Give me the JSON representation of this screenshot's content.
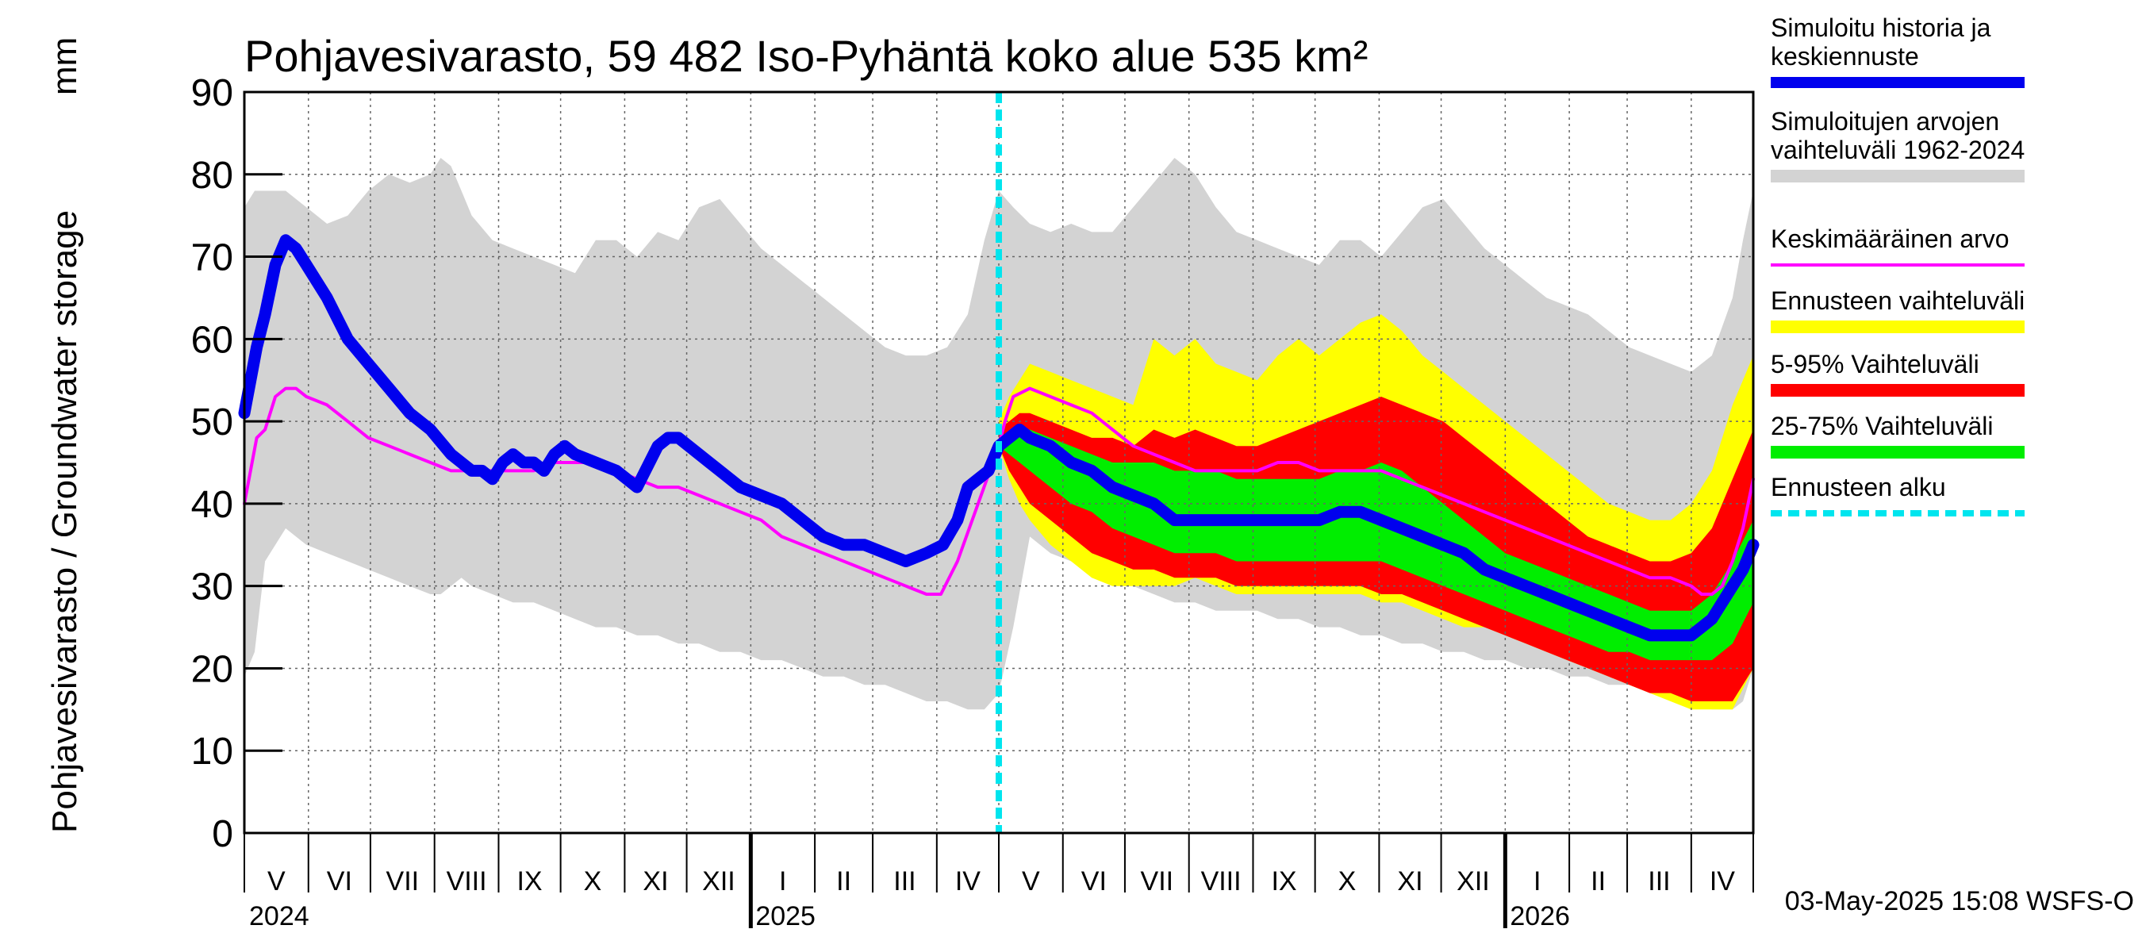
{
  "chart_data": {
    "type": "area",
    "title": "Pohjavesivarasto, 59 482 Iso-Pyhäntä koko alue 535 km²",
    "ylabel": "Pohjavesivarasto / Groundwater storage",
    "yunit": "mm",
    "ylim": [
      0,
      90
    ],
    "yticks": [
      "0",
      "10",
      "20",
      "30",
      "40",
      "50",
      "60",
      "70",
      "80",
      "90"
    ],
    "xlim_days": [
      0,
      730
    ],
    "forecast_start_day": 365,
    "grid": true,
    "months": [
      {
        "label": "V",
        "start": 0
      },
      {
        "label": "VI",
        "start": 31
      },
      {
        "label": "VII",
        "start": 61
      },
      {
        "label": "VIII",
        "start": 92
      },
      {
        "label": "IX",
        "start": 123
      },
      {
        "label": "X",
        "start": 153
      },
      {
        "label": "XI",
        "start": 184
      },
      {
        "label": "XII",
        "start": 214
      },
      {
        "label": "I",
        "start": 245
      },
      {
        "label": "II",
        "start": 276
      },
      {
        "label": "III",
        "start": 304
      },
      {
        "label": "IV",
        "start": 335
      },
      {
        "label": "V",
        "start": 365
      },
      {
        "label": "VI",
        "start": 396
      },
      {
        "label": "VII",
        "start": 426
      },
      {
        "label": "VIII",
        "start": 457
      },
      {
        "label": "IX",
        "start": 488
      },
      {
        "label": "X",
        "start": 518
      },
      {
        "label": "XI",
        "start": 549
      },
      {
        "label": "XII",
        "start": 579
      },
      {
        "label": "I",
        "start": 610
      },
      {
        "label": "II",
        "start": 641
      },
      {
        "label": "III",
        "start": 669
      },
      {
        "label": "IV",
        "start": 700
      }
    ],
    "years": [
      {
        "label": "2024",
        "day": 0
      },
      {
        "label": "2025",
        "day": 245
      },
      {
        "label": "2026",
        "day": 610
      }
    ],
    "series": [
      {
        "name": "Simuloitujen arvojen vaihteluväli 1962-2024",
        "color": "#d3d3d3",
        "x": [
          0,
          5,
          10,
          20,
          30,
          40,
          50,
          60,
          70,
          80,
          90,
          95,
          100,
          105,
          110,
          120,
          130,
          140,
          150,
          160,
          170,
          180,
          190,
          200,
          210,
          220,
          230,
          240,
          250,
          260,
          270,
          280,
          290,
          300,
          310,
          320,
          330,
          340,
          350,
          358,
          365,
          372,
          380,
          390,
          400,
          410,
          420,
          430,
          440,
          450,
          460,
          470,
          480,
          490,
          500,
          510,
          520,
          530,
          540,
          550,
          560,
          570,
          580,
          590,
          600,
          610,
          620,
          630,
          640,
          650,
          660,
          670,
          680,
          690,
          700,
          710,
          720,
          725,
          730
        ],
        "upper": [
          76,
          78,
          78,
          78,
          76,
          74,
          75,
          78,
          80,
          79,
          80,
          82,
          81,
          78,
          75,
          72,
          71,
          70,
          69,
          68,
          72,
          72,
          70,
          73,
          72,
          76,
          77,
          74,
          71,
          69,
          67,
          65,
          63,
          61,
          59,
          58,
          58,
          59,
          63,
          72,
          78,
          76,
          74,
          73,
          74,
          73,
          73,
          76,
          79,
          82,
          80,
          76,
          73,
          72,
          71,
          70,
          69,
          72,
          72,
          70,
          73,
          76,
          77,
          74,
          71,
          69,
          67,
          65,
          64,
          63,
          61,
          59,
          58,
          57,
          56,
          58,
          65,
          72,
          78
        ],
        "lower": [
          19,
          22,
          33,
          37,
          35,
          34,
          33,
          32,
          31,
          30,
          29,
          29,
          30,
          31,
          30,
          29,
          28,
          28,
          27,
          26,
          25,
          25,
          24,
          24,
          23,
          23,
          22,
          22,
          21,
          21,
          20,
          19,
          19,
          18,
          18,
          17,
          16,
          16,
          15,
          15,
          17,
          25,
          36,
          34,
          33,
          32,
          31,
          30,
          29,
          28,
          28,
          27,
          27,
          27,
          26,
          26,
          25,
          25,
          24,
          24,
          23,
          23,
          22,
          22,
          21,
          21,
          20,
          20,
          19,
          19,
          18,
          18,
          17,
          17,
          16,
          15,
          15,
          16,
          20
        ]
      },
      {
        "name": "Ennusteen vaihteluväli",
        "color": "#ffff00",
        "x": [
          365,
          370,
          375,
          380,
          390,
          400,
          410,
          420,
          430,
          440,
          450,
          460,
          470,
          480,
          490,
          500,
          510,
          520,
          530,
          540,
          550,
          560,
          570,
          580,
          590,
          600,
          610,
          620,
          630,
          640,
          650,
          660,
          670,
          680,
          690,
          700,
          710,
          720,
          730
        ],
        "upper": [
          50,
          53,
          55,
          57,
          56,
          55,
          54,
          53,
          52,
          60,
          58,
          60,
          57,
          56,
          55,
          58,
          60,
          58,
          60,
          62,
          63,
          61,
          58,
          56,
          54,
          52,
          50,
          48,
          46,
          44,
          42,
          40,
          39,
          38,
          38,
          40,
          44,
          52,
          58
        ],
        "lower": [
          47,
          43,
          40,
          38,
          35,
          33,
          31,
          30,
          30,
          30,
          30,
          31,
          30,
          29,
          29,
          29,
          29,
          29,
          29,
          29,
          28,
          28,
          27,
          26,
          25,
          25,
          24,
          23,
          22,
          21,
          20,
          19,
          18,
          17,
          16,
          15,
          15,
          15,
          20
        ]
      },
      {
        "name": "5-95% Vaihteluväli",
        "color": "#ff0000",
        "x": [
          365,
          370,
          375,
          380,
          390,
          400,
          410,
          420,
          430,
          440,
          450,
          460,
          470,
          480,
          490,
          500,
          510,
          520,
          530,
          540,
          550,
          560,
          570,
          580,
          590,
          600,
          610,
          620,
          630,
          640,
          650,
          660,
          670,
          680,
          690,
          700,
          710,
          720,
          730
        ],
        "upper": [
          49,
          50,
          51,
          51,
          50,
          49,
          48,
          48,
          47,
          49,
          48,
          49,
          48,
          47,
          47,
          48,
          49,
          50,
          51,
          52,
          53,
          52,
          51,
          50,
          48,
          46,
          44,
          42,
          40,
          38,
          36,
          35,
          34,
          33,
          33,
          34,
          37,
          43,
          49
        ],
        "lower": [
          47,
          44,
          42,
          40,
          38,
          36,
          34,
          33,
          32,
          32,
          31,
          31,
          31,
          30,
          30,
          30,
          30,
          30,
          30,
          30,
          29,
          29,
          28,
          27,
          26,
          25,
          24,
          23,
          22,
          21,
          20,
          19,
          18,
          17,
          17,
          16,
          16,
          16,
          20
        ]
      },
      {
        "name": "25-75% Vaihteluväli",
        "color": "#00ee00",
        "x": [
          365,
          370,
          375,
          380,
          390,
          400,
          410,
          420,
          430,
          440,
          450,
          460,
          470,
          480,
          490,
          500,
          510,
          520,
          530,
          540,
          550,
          560,
          570,
          580,
          590,
          600,
          610,
          620,
          630,
          640,
          650,
          660,
          670,
          680,
          690,
          700,
          710,
          720,
          730
        ],
        "upper": [
          48,
          48,
          49,
          49,
          48,
          47,
          46,
          45,
          45,
          45,
          44,
          44,
          44,
          43,
          43,
          43,
          43,
          43,
          44,
          44,
          45,
          44,
          42,
          40,
          38,
          36,
          34,
          33,
          32,
          31,
          30,
          29,
          28,
          27,
          27,
          27,
          29,
          33,
          38
        ],
        "lower": [
          47,
          46,
          45,
          44,
          42,
          40,
          39,
          37,
          36,
          35,
          34,
          34,
          34,
          33,
          33,
          33,
          33,
          33,
          33,
          33,
          33,
          32,
          31,
          30,
          29,
          28,
          27,
          26,
          25,
          24,
          23,
          22,
          22,
          21,
          21,
          21,
          21,
          23,
          28
        ]
      },
      {
        "name": "Keskimääräinen arvo",
        "color": "#ff00ff",
        "x": [
          0,
          3,
          6,
          10,
          15,
          20,
          25,
          30,
          40,
          50,
          60,
          70,
          80,
          90,
          100,
          110,
          120,
          130,
          140,
          150,
          160,
          170,
          180,
          190,
          200,
          210,
          220,
          230,
          240,
          250,
          260,
          270,
          280,
          290,
          300,
          310,
          320,
          330,
          337,
          345,
          355,
          365,
          368,
          372,
          380,
          390,
          400,
          410,
          420,
          430,
          440,
          450,
          460,
          470,
          480,
          490,
          500,
          510,
          520,
          530,
          540,
          550,
          560,
          570,
          580,
          590,
          600,
          610,
          620,
          630,
          640,
          650,
          660,
          670,
          680,
          690,
          700,
          705,
          710,
          715,
          720,
          725,
          730
        ],
        "values": [
          40,
          44,
          48,
          49,
          53,
          54,
          54,
          53,
          52,
          50,
          48,
          47,
          46,
          45,
          44,
          44,
          44,
          44,
          44,
          45,
          45,
          45,
          44,
          43,
          42,
          42,
          41,
          40,
          39,
          38,
          36,
          35,
          34,
          33,
          32,
          31,
          30,
          29,
          29,
          33,
          40,
          47,
          50,
          53,
          54,
          53,
          52,
          51,
          49,
          47,
          46,
          45,
          44,
          44,
          44,
          44,
          45,
          45,
          44,
          44,
          44,
          44,
          43,
          42,
          41,
          40,
          39,
          38,
          37,
          36,
          35,
          34,
          33,
          32,
          31,
          31,
          30,
          29,
          29,
          30,
          33,
          37,
          43
        ]
      },
      {
        "name": "Simuloitu historia ja keskiennuste",
        "color": "#0000ee",
        "x": [
          0,
          3,
          6,
          10,
          15,
          20,
          25,
          30,
          40,
          50,
          60,
          70,
          80,
          90,
          100,
          110,
          115,
          120,
          125,
          130,
          135,
          140,
          145,
          150,
          155,
          160,
          170,
          180,
          190,
          200,
          205,
          210,
          215,
          220,
          225,
          230,
          240,
          250,
          260,
          270,
          280,
          290,
          300,
          310,
          320,
          330,
          338,
          345,
          350,
          355,
          360,
          365,
          370,
          375,
          380,
          390,
          400,
          410,
          420,
          430,
          440,
          450,
          460,
          470,
          480,
          490,
          500,
          510,
          520,
          530,
          540,
          550,
          560,
          570,
          580,
          590,
          600,
          610,
          620,
          630,
          640,
          650,
          660,
          670,
          680,
          690,
          700,
          705,
          710,
          715,
          720,
          725,
          730
        ],
        "values": [
          51,
          55,
          59,
          63,
          69,
          72,
          71,
          69,
          65,
          60,
          57,
          54,
          51,
          49,
          46,
          44,
          44,
          43,
          45,
          46,
          45,
          45,
          44,
          46,
          47,
          46,
          45,
          44,
          42,
          47,
          48,
          48,
          47,
          46,
          45,
          44,
          42,
          41,
          40,
          38,
          36,
          35,
          35,
          34,
          33,
          34,
          35,
          38,
          42,
          43,
          44,
          47,
          48,
          49,
          48,
          47,
          45,
          44,
          42,
          41,
          40,
          38,
          38,
          38,
          38,
          38,
          38,
          38,
          38,
          39,
          39,
          38,
          37,
          36,
          35,
          34,
          32,
          31,
          30,
          29,
          28,
          27,
          26,
          25,
          24,
          24,
          24,
          25,
          26,
          28,
          30,
          32,
          35
        ]
      }
    ],
    "forecast_line": {
      "name": "Ennusteen alku",
      "color": "#00e5ee"
    }
  },
  "legend": [
    {
      "label_lines": [
        "Simuloitu historia ja",
        "keskiennuste"
      ],
      "color": "#0000ee",
      "kind": "thick"
    },
    {
      "label_lines": [
        "Simuloitujen arvojen",
        "vaihteluväli 1962-2024"
      ],
      "color": "#d3d3d3",
      "kind": "band"
    },
    {
      "label_lines": [
        "Keskimääräinen arvo"
      ],
      "color": "#ff00ff",
      "kind": "thin"
    },
    {
      "label_lines": [
        "Ennusteen vaihteluväli"
      ],
      "color": "#ffff00",
      "kind": "band"
    },
    {
      "label_lines": [
        "5-95% Vaihteluväli"
      ],
      "color": "#ff0000",
      "kind": "band"
    },
    {
      "label_lines": [
        "25-75% Vaihteluväli"
      ],
      "color": "#00ee00",
      "kind": "band"
    },
    {
      "label_lines": [
        "Ennusteen alku"
      ],
      "color": "#00e5ee",
      "kind": "dashed"
    }
  ],
  "footer": "03-May-2025 15:08 WSFS-O"
}
